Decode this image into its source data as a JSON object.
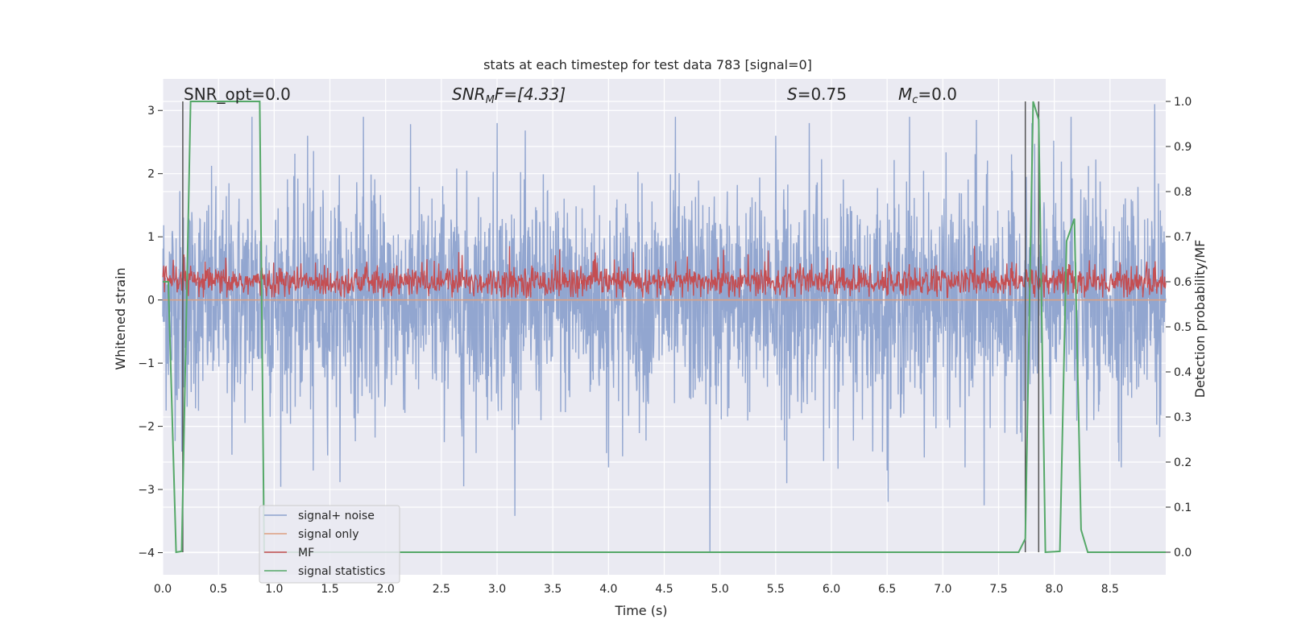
{
  "chart_data": {
    "type": "line",
    "title": "stats at each timestep for test data 783 [signal=0]",
    "xlabel": "Time (s)",
    "ylabel": "Whitened strain",
    "y2label": "Detection probability/MF",
    "xlim": [
      0,
      9.0
    ],
    "ylim": [
      -4.35,
      3.5
    ],
    "y2lim": [
      -0.05,
      1.05
    ],
    "xticks": [
      "0.0",
      "0.5",
      "1.0",
      "1.5",
      "2.0",
      "2.5",
      "3.0",
      "3.5",
      "4.0",
      "4.5",
      "5.0",
      "5.5",
      "6.0",
      "6.5",
      "7.0",
      "7.5",
      "8.0",
      "8.5"
    ],
    "yticks": [
      "3",
      "2",
      "1",
      "0",
      "−1",
      "−2",
      "−3",
      "−4"
    ],
    "y2ticks": [
      "1.0",
      "0.9",
      "0.8",
      "0.7",
      "0.6",
      "0.5",
      "0.4",
      "0.3",
      "0.2",
      "0.1",
      "0.0"
    ],
    "grid": true,
    "legend_position": "lower-left",
    "annotations": {
      "snr_opt": "SNR_opt=0.0",
      "snr_mf_prefix": "SNR",
      "snr_mf_sub": "M",
      "snr_mf_suffix": "F=[4.33]",
      "s_name": "S",
      "s_value": "=0.75",
      "mc_name": "M",
      "mc_sub": "c",
      "mc_value": "=0.0"
    },
    "vertical_lines_x": [
      0.18,
      7.74,
      7.86
    ],
    "series": [
      {
        "name": "signal+ noise",
        "color": "#8da2cd",
        "axis": "left",
        "description_values": {
          "mean": 0.0,
          "std": 0.85,
          "min": -4.0,
          "max": 3.1
        },
        "spikes": [
          [
            0.17,
            -2.4
          ],
          [
            0.62,
            -2.45
          ],
          [
            0.8,
            2.9
          ],
          [
            1.3,
            2.6
          ],
          [
            1.35,
            -2.7
          ],
          [
            1.8,
            2.9
          ],
          [
            2.7,
            -2.95
          ],
          [
            3.0,
            2.8
          ],
          [
            4.0,
            -2.65
          ],
          [
            4.6,
            2.9
          ],
          [
            4.91,
            -4.0
          ],
          [
            5.5,
            2.6
          ],
          [
            5.6,
            -2.9
          ],
          [
            5.8,
            2.8
          ],
          [
            6.5,
            -2.7
          ],
          [
            6.7,
            2.9
          ],
          [
            7.2,
            -2.65
          ],
          [
            7.3,
            2.85
          ],
          [
            7.37,
            -3.25
          ],
          [
            7.8,
            2.8
          ],
          [
            8.15,
            2.9
          ],
          [
            8.6,
            -2.65
          ],
          [
            8.9,
            3.1
          ]
        ]
      },
      {
        "name": "signal only",
        "color": "#dd9f7f",
        "axis": "left",
        "values_description": "flat at 0",
        "x": [
          0,
          9.0
        ],
        "y": [
          0,
          0
        ]
      },
      {
        "name": "MF",
        "color": "#c44e52",
        "axis": "right",
        "description_values": {
          "mean": 0.6,
          "min": 0.565,
          "max": 0.685
        }
      },
      {
        "name": "signal statistics",
        "color": "#55a868",
        "axis": "right",
        "x": [
          0,
          0.05,
          0.12,
          0.17,
          0.25,
          0.87,
          0.91,
          0.96,
          7.68,
          7.74,
          7.81,
          7.86,
          7.92,
          8.05,
          8.11,
          8.18,
          8.24,
          8.3,
          9.0
        ],
        "y": [
          0.6,
          0.6,
          0.0,
          0.002,
          1.0,
          1.0,
          0.0,
          0.0,
          0.0,
          0.03,
          1.0,
          0.96,
          0.0,
          0.002,
          0.69,
          0.74,
          0.05,
          0.0,
          0.0
        ]
      }
    ]
  }
}
